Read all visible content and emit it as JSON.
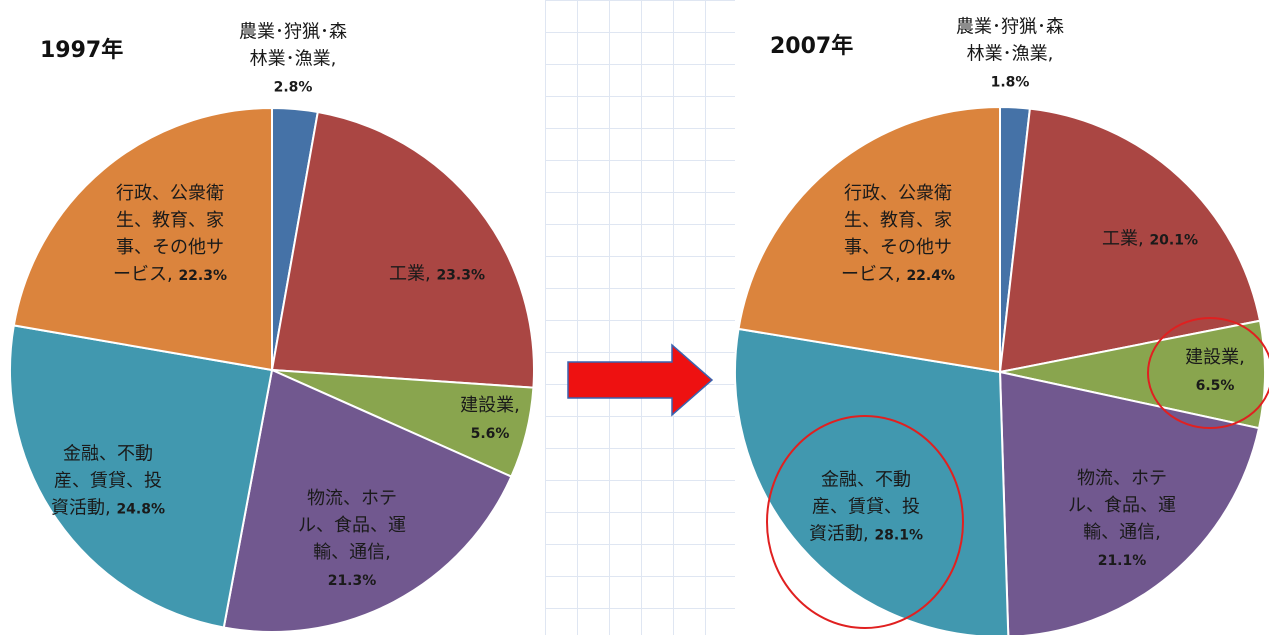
{
  "chart_data": [
    {
      "type": "pie",
      "title": "1997年",
      "categories": [
        "農業･狩猟･森林業･漁業",
        "工業",
        "建設業",
        "物流、ホテル、食品、運輸、通信",
        "金融、不動産、賃貸、投資活動",
        "行政、公衆衛生、教育、家事、その他サービス"
      ],
      "values": [
        2.8,
        23.3,
        5.6,
        21.3,
        24.8,
        22.3
      ],
      "value_labels": [
        "2.8%",
        "23.3%",
        "5.6%",
        "21.3%",
        "24.8%",
        "22.3%"
      ],
      "colors": [
        "#4572a7",
        "#aa4643",
        "#89a54e",
        "#71588f",
        "#4198af",
        "#db843d"
      ]
    },
    {
      "type": "pie",
      "title": "2007年",
      "categories": [
        "農業･狩猟･森林業･漁業",
        "工業",
        "建設業",
        "物流、ホテル、食品、運輸、通信",
        "金融、不動産、賃貸、投資活動",
        "行政、公衆衛生、教育、家事、その他サービス"
      ],
      "values": [
        1.8,
        20.1,
        6.5,
        21.1,
        28.1,
        22.4
      ],
      "value_labels": [
        "1.8%",
        "20.1%",
        "6.5%",
        "21.1%",
        "28.1%",
        "22.4%"
      ],
      "colors": [
        "#4572a7",
        "#aa4643",
        "#89a54e",
        "#71588f",
        "#4198af",
        "#db843d"
      ]
    }
  ]
}
